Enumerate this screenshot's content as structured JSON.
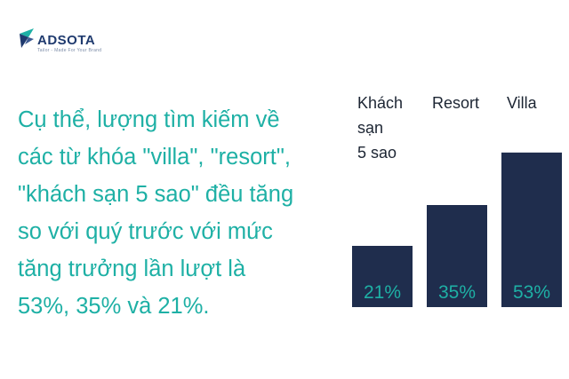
{
  "logo": {
    "name": "ADSOTA",
    "tagline": "Tailor - Made For Your Brand",
    "accent": "#1eb0a5",
    "brand": "#1f3a6e"
  },
  "body_text": {
    "lines": [
      "Cụ thể, lượng tìm kiếm về",
      "các từ khóa \"villa\", \"resort\",",
      "\"khách sạn 5 sao\" đều tăng",
      "so với quý trước với mức",
      "tăng trưởng lần lượt là",
      "53%, 35% và 21%."
    ]
  },
  "chart_data": {
    "type": "bar",
    "categories": [
      "Khách sạn 5 sao",
      "Resort",
      "Villa"
    ],
    "category_lines": [
      [
        "Khách",
        "sạn",
        "5 sao"
      ],
      [
        "Resort"
      ],
      [
        "Villa"
      ]
    ],
    "values": [
      21,
      35,
      53
    ],
    "value_labels": [
      "21%",
      "35%",
      "53%"
    ],
    "ylim": [
      0,
      70
    ],
    "bar_color": "#1f2d4d",
    "label_color": "#1eb0a5",
    "category_color": "#1c2533",
    "grid": false
  }
}
